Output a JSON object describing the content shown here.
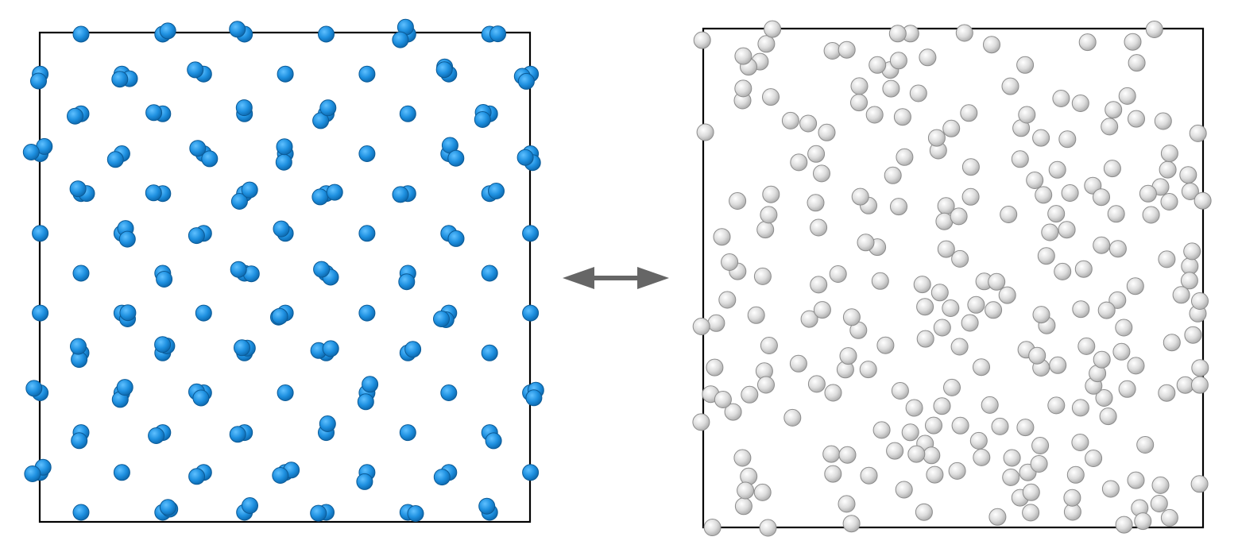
{
  "panels": [
    {
      "id": "ordered-crystal",
      "particle_color": "#1e90e0",
      "particle_edge": "#0b5a96"
    },
    {
      "id": "disordered-liquid",
      "particle_color": "#d9d9d9",
      "particle_edge": "#8c8c8c"
    }
  ],
  "connector": {
    "icon": "double-arrow-icon",
    "color": "#666666"
  }
}
